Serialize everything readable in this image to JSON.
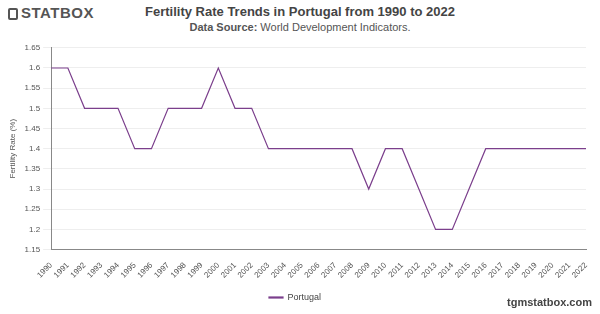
{
  "chart_data": {
    "type": "line",
    "logo": "STATBOX",
    "title": "Fertility Rate Trends in Portugal from 1990 to 2022",
    "subtitle_label": "Data Source:",
    "subtitle": "World Development Indicators.",
    "y_label": "Fertility Rate (%)",
    "watermark": "tgmstatbox.com",
    "categories": [
      "1990",
      "1991",
      "1992",
      "1993",
      "1994",
      "1995",
      "1996",
      "1997",
      "1998",
      "1999",
      "2000",
      "2001",
      "2002",
      "2003",
      "2004",
      "2005",
      "2006",
      "2007",
      "2008",
      "2009",
      "2010",
      "2011",
      "2012",
      "2013",
      "2014",
      "2015",
      "2016",
      "2017",
      "2018",
      "2019",
      "2020",
      "2021",
      "2022"
    ],
    "series": [
      {
        "name": "Portugal",
        "color": "#7b3f8c",
        "values": [
          1.6,
          1.6,
          1.5,
          1.5,
          1.5,
          1.4,
          1.4,
          1.5,
          1.5,
          1.5,
          1.6,
          1.5,
          1.5,
          1.4,
          1.4,
          1.4,
          1.4,
          1.4,
          1.4,
          1.3,
          1.4,
          1.4,
          1.3,
          1.2,
          1.2,
          1.3,
          1.4,
          1.4,
          1.4,
          1.4,
          1.4,
          1.4,
          1.4
        ]
      }
    ],
    "ylim": [
      1.15,
      1.65
    ],
    "yticks": [
      1.15,
      1.2,
      1.25,
      1.3,
      1.35,
      1.4,
      1.45,
      1.5,
      1.55,
      1.6,
      1.65
    ],
    "grid": true,
    "legend": "bottom"
  }
}
